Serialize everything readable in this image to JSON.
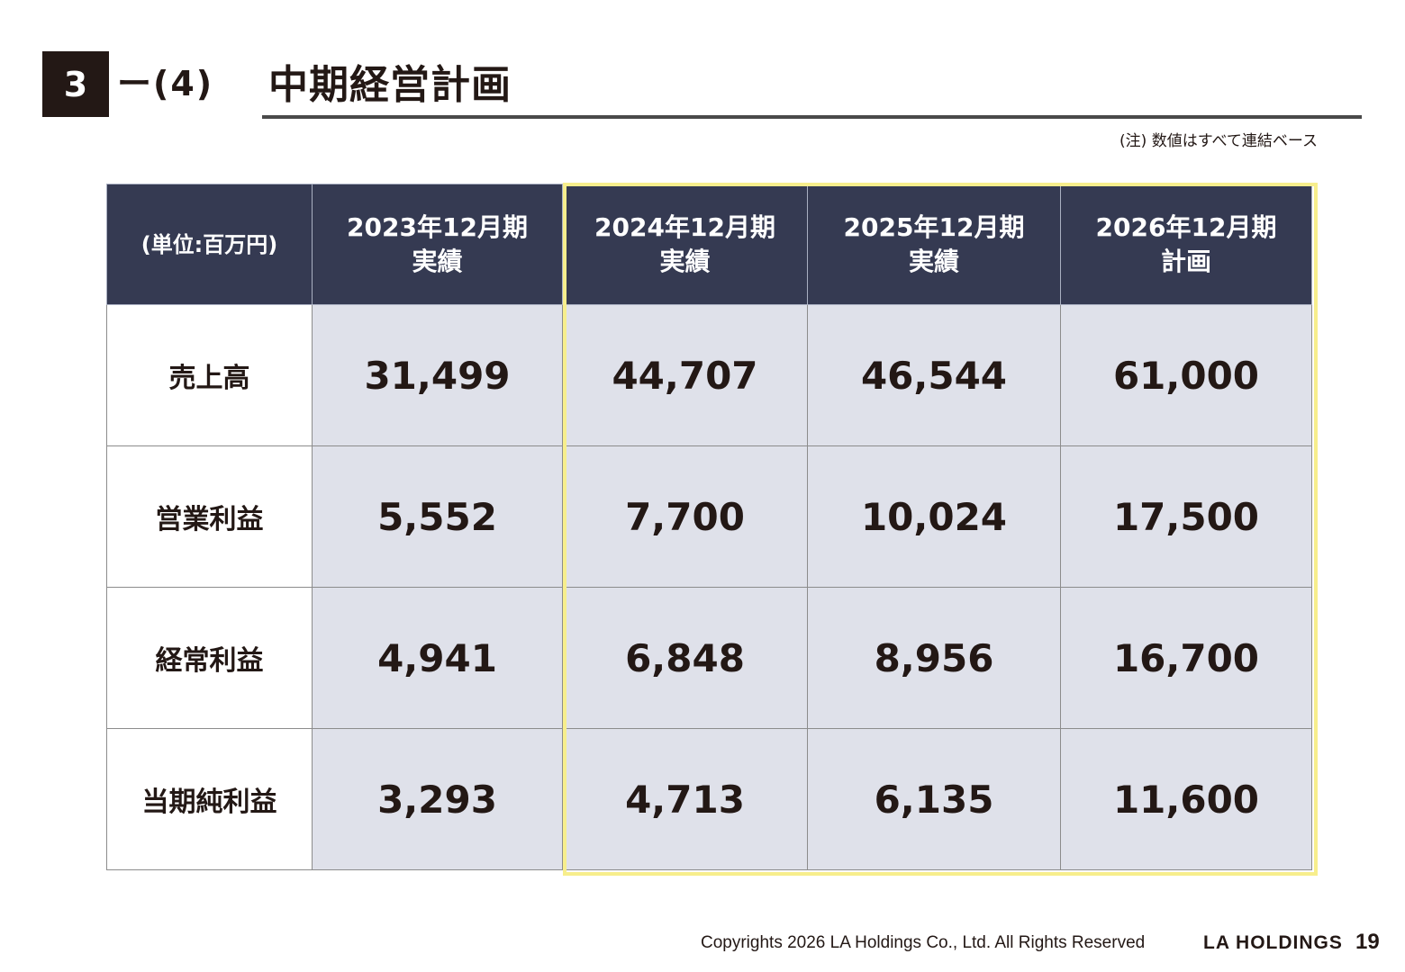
{
  "header": {
    "section_number": "3",
    "section_sub": "ー(4)",
    "title": "中期経営計画",
    "note": "(注) 数値はすべて連結ベース"
  },
  "table": {
    "unit_label": "(単位:百万円)",
    "columns": [
      {
        "year": "2023年12月期",
        "kind": "実績"
      },
      {
        "year": "2024年12月期",
        "kind": "実績"
      },
      {
        "year": "2025年12月期",
        "kind": "実績"
      },
      {
        "year": "2026年12月期",
        "kind": "計画"
      }
    ],
    "rows": [
      {
        "label": "売上高",
        "values": [
          "31,499",
          "44,707",
          "46,544",
          "61,000"
        ]
      },
      {
        "label": "営業利益",
        "values": [
          "5,552",
          "7,700",
          "10,024",
          "17,500"
        ]
      },
      {
        "label": "経常利益",
        "values": [
          "4,941",
          "6,848",
          "8,956",
          "16,700"
        ]
      },
      {
        "label": "当期純利益",
        "values": [
          "3,293",
          "4,713",
          "6,135",
          "11,600"
        ]
      }
    ]
  },
  "footer": {
    "copyright": "Copyrights 2026 LA Holdings Co., Ltd.  All Rights Reserved",
    "logo": "LA HOLDINGS",
    "page_number": "19"
  },
  "colors": {
    "header_bg": "#353a52",
    "cell_bg": "#dfe1ea",
    "highlight_border": "#f7ee8c",
    "text": "#231815"
  }
}
